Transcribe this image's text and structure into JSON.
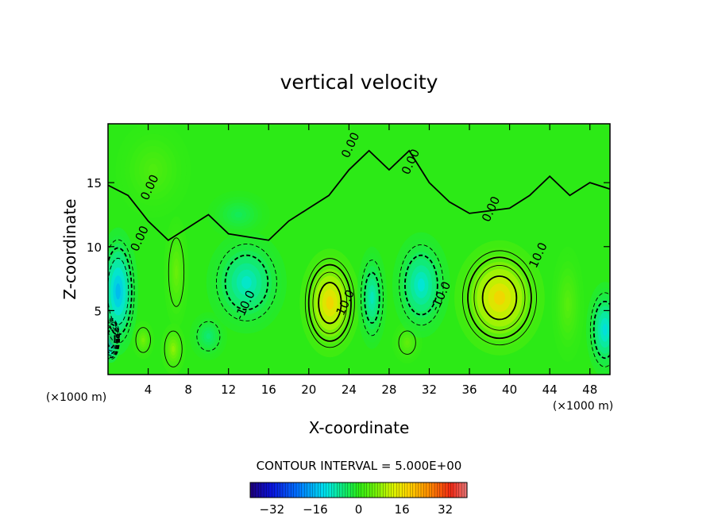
{
  "chart_data": {
    "type": "heatmap",
    "title": "vertical velocity",
    "xlabel": "X-coordinate",
    "ylabel": "Z-coordinate",
    "x_unit_label": "(×1000 m)",
    "z_unit_label": "(×1000 m)",
    "xlim": [
      0,
      50
    ],
    "ylim": [
      0,
      19.6
    ],
    "x_ticks": [
      4,
      8,
      12,
      16,
      20,
      24,
      28,
      32,
      36,
      40,
      44,
      48
    ],
    "x_tick_labels": [
      "4",
      "8",
      "12",
      "16",
      "20",
      "24",
      "28",
      "32",
      "36",
      "40",
      "44",
      "48"
    ],
    "y_ticks": [
      5,
      10,
      15
    ],
    "y_tick_labels": [
      "5",
      "10",
      "15"
    ],
    "contour_interval_text": "CONTOUR INTERVAL = 5.000E+00",
    "contour_labels": [
      {
        "text": "0.00",
        "x": 4.5,
        "z": 14.5
      },
      {
        "text": "0.00",
        "x": 3.5,
        "z": 10.5
      },
      {
        "text": "0.00",
        "x": 24.5,
        "z": 17.8
      },
      {
        "text": "0.00",
        "x": 30.5,
        "z": 16.5
      },
      {
        "text": "0.00",
        "x": 38.5,
        "z": 12.8
      },
      {
        "text": "-10.0",
        "x": 14,
        "z": 5.3
      },
      {
        "text": "10.0",
        "x": 24,
        "z": 5.5
      },
      {
        "text": "-10.0",
        "x": 33.5,
        "z": 6.0
      },
      {
        "text": "10.0",
        "x": 43.2,
        "z": 9.2
      }
    ],
    "cells": [
      {
        "x": 0.3,
        "z": 2.8,
        "value": -34,
        "sx": 0.8,
        "sz": 1.5
      },
      {
        "x": 1.0,
        "z": 6.5,
        "value": -20,
        "sx": 1.6,
        "sz": 4.0
      },
      {
        "x": 3.5,
        "z": 2.7,
        "value": 8,
        "sx": 0.9,
        "sz": 1.2
      },
      {
        "x": 6.5,
        "z": 2.0,
        "value": 10,
        "sx": 1.0,
        "sz": 1.6
      },
      {
        "x": 6.8,
        "z": 8.0,
        "value": 7,
        "sx": 1.0,
        "sz": 3.5
      },
      {
        "x": 13.8,
        "z": 7.2,
        "value": -13,
        "sx": 3.2,
        "sz": 3.2
      },
      {
        "x": 10.0,
        "z": 3.0,
        "value": -7,
        "sx": 1.5,
        "sz": 1.5
      },
      {
        "x": 22.1,
        "z": 5.6,
        "value": 22,
        "sx": 2.4,
        "sz": 3.4
      },
      {
        "x": 26.3,
        "z": 6.0,
        "value": -12,
        "sx": 1.2,
        "sz": 3.2
      },
      {
        "x": 29.8,
        "z": 2.5,
        "value": 6,
        "sx": 1.2,
        "sz": 1.3
      },
      {
        "x": 31.2,
        "z": 7.0,
        "value": -14,
        "sx": 2.3,
        "sz": 3.3
      },
      {
        "x": 39.0,
        "z": 6.0,
        "value": 22,
        "sx": 3.6,
        "sz": 3.6
      },
      {
        "x": 45.8,
        "z": 5.5,
        "value": 5,
        "sx": 1.3,
        "sz": 3.6
      },
      {
        "x": 49.5,
        "z": 3.5,
        "value": -15,
        "sx": 1.5,
        "sz": 3.0
      },
      {
        "x": 4.5,
        "z": 16.0,
        "value": 4,
        "sx": 3.0,
        "sz": 3.0
      },
      {
        "x": 13.0,
        "z": 12.5,
        "value": -5,
        "sx": 2.5,
        "sz": 1.5
      }
    ],
    "colorbar": {
      "min": -40,
      "max": 40,
      "ticks": [
        -32,
        -16,
        0,
        16,
        32
      ],
      "tick_labels": [
        "−32",
        "−16",
        "0",
        "16",
        "32"
      ]
    }
  }
}
